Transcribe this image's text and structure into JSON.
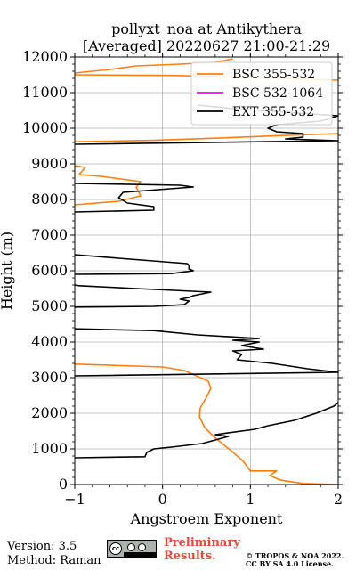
{
  "chart_data": {
    "type": "line",
    "title_line1": "pollyxt_noa at Antikythera",
    "title_line2": "[Averaged] 20220627 21:00-21:29",
    "xlabel": "Angstroem Exponent",
    "ylabel": "Height (m)",
    "xlim": [
      -1,
      2
    ],
    "ylim": [
      0,
      12000
    ],
    "x_ticks": [
      "−1",
      "0",
      "1",
      "2"
    ],
    "x_tick_values": [
      -1,
      0,
      1,
      2
    ],
    "y_ticks": [
      "0",
      "1000",
      "2000",
      "3000",
      "4000",
      "5000",
      "6000",
      "7000",
      "8000",
      "9000",
      "10000",
      "11000",
      "12000"
    ],
    "y_tick_values": [
      0,
      1000,
      2000,
      3000,
      4000,
      5000,
      6000,
      7000,
      8000,
      9000,
      10000,
      11000,
      12000
    ],
    "grid": true,
    "legend_position": "top-right",
    "series": [
      {
        "name": "BSC 355-532",
        "color": "#ff7f0e",
        "segments": [
          [
            [
              2.0,
              0
            ],
            [
              1.6,
              30
            ],
            [
              1.35,
              120
            ],
            [
              1.22,
              250
            ],
            [
              1.3,
              380
            ],
            [
              1.0,
              380
            ],
            [
              0.92,
              650
            ],
            [
              0.78,
              950
            ],
            [
              0.58,
              1350
            ],
            [
              0.48,
              1600
            ],
            [
              0.42,
              1900
            ],
            [
              0.43,
              2150
            ],
            [
              0.5,
              2450
            ],
            [
              0.55,
              2700
            ],
            [
              0.52,
              2900
            ],
            [
              0.25,
              3200
            ],
            [
              0.0,
              3300
            ],
            [
              -1.0,
              3380
            ]
          ],
          [
            [
              -1.0,
              7850
            ],
            [
              -0.5,
              7950
            ],
            [
              -0.25,
              8100
            ],
            [
              -0.3,
              8350
            ],
            [
              -0.25,
              8500
            ],
            [
              -0.7,
              8650
            ],
            [
              -0.95,
              8700
            ],
            [
              -0.88,
              8900
            ],
            [
              -1.0,
              8950
            ]
          ],
          [
            [
              -1.0,
              9620
            ],
            [
              -0.1,
              9660
            ],
            [
              0.6,
              9720
            ],
            [
              1.3,
              9790
            ],
            [
              2.0,
              9850
            ]
          ],
          [
            [
              -1.0,
              11500
            ],
            [
              0.2,
              11480
            ],
            [
              2.0,
              11350
            ]
          ],
          [
            [
              -1.0,
              11550
            ],
            [
              -0.6,
              11650
            ],
            [
              -0.3,
              11750
            ],
            [
              0.2,
              11800
            ],
            [
              0.6,
              11850
            ],
            [
              0.8,
              11950
            ]
          ]
        ]
      },
      {
        "name": "BSC 532-1064",
        "color": "#ff00ff",
        "segments": []
      },
      {
        "name": "EXT 355-532",
        "color": "#000000",
        "segments": [
          [
            [
              -1.0,
              750
            ],
            [
              -0.2,
              780
            ],
            [
              -0.18,
              900
            ],
            [
              -0.1,
              1000
            ],
            [
              0.1,
              1050
            ],
            [
              0.45,
              1150
            ],
            [
              0.75,
              1350
            ],
            [
              0.6,
              1400
            ],
            [
              1.05,
              1550
            ],
            [
              1.2,
              1650
            ],
            [
              1.5,
              1800
            ],
            [
              1.75,
              2000
            ],
            [
              1.95,
              2200
            ],
            [
              2.0,
              2300
            ]
          ],
          [
            [
              -1.0,
              3050
            ],
            [
              2.0,
              3150
            ],
            [
              1.65,
              3250
            ],
            [
              1.25,
              3400
            ],
            [
              0.85,
              3500
            ],
            [
              0.9,
              3650
            ],
            [
              0.8,
              3750
            ],
            [
              1.15,
              3800
            ],
            [
              0.9,
              3900
            ],
            [
              1.1,
              4000
            ],
            [
              0.8,
              4050
            ],
            [
              1.1,
              4100
            ],
            [
              0.4,
              4200
            ],
            [
              -0.1,
              4320
            ],
            [
              -1.0,
              4370
            ]
          ],
          [
            [
              -1.0,
              4980
            ],
            [
              -0.1,
              5000
            ],
            [
              0.25,
              5050
            ],
            [
              0.3,
              5150
            ],
            [
              0.2,
              5200
            ],
            [
              0.3,
              5250
            ],
            [
              0.35,
              5300
            ],
            [
              0.55,
              5400
            ],
            [
              -0.3,
              5500
            ],
            [
              -0.95,
              5580
            ],
            [
              -1.0,
              5600
            ]
          ],
          [
            [
              -1.0,
              5900
            ],
            [
              0.1,
              5920
            ],
            [
              0.35,
              6000
            ],
            [
              0.3,
              6050
            ],
            [
              0.3,
              6150
            ],
            [
              0.28,
              6200
            ],
            [
              -0.5,
              6350
            ],
            [
              -1.0,
              6450
            ]
          ],
          [
            [
              -1.0,
              7650
            ],
            [
              -0.1,
              7700
            ],
            [
              -0.1,
              7800
            ],
            [
              -0.4,
              7900
            ],
            [
              -0.5,
              8050
            ],
            [
              -0.45,
              8200
            ],
            [
              0.35,
              8350
            ],
            [
              0.2,
              8400
            ],
            [
              -1.0,
              8450
            ]
          ],
          [
            [
              -1.0,
              9550
            ],
            [
              2.0,
              9650
            ],
            [
              1.4,
              9700
            ],
            [
              1.6,
              9750
            ],
            [
              1.6,
              9850
            ],
            [
              1.3,
              9900
            ],
            [
              1.2,
              10000
            ],
            [
              1.3,
              10100
            ],
            [
              1.8,
              10200
            ],
            [
              2.0,
              10350
            ],
            [
              1.4,
              10450
            ],
            [
              0.8,
              10550
            ],
            [
              0.4,
              10650
            ]
          ]
        ]
      }
    ]
  },
  "footer": {
    "version": "Version: 3.5",
    "method": "Method: Raman",
    "preliminary": "Preliminary Results.",
    "copyright_line1": "© TROPOS & NOA 2022.",
    "copyright_line2": "CC BY SA 4.0 License.",
    "cc_badge_text": "cc"
  }
}
